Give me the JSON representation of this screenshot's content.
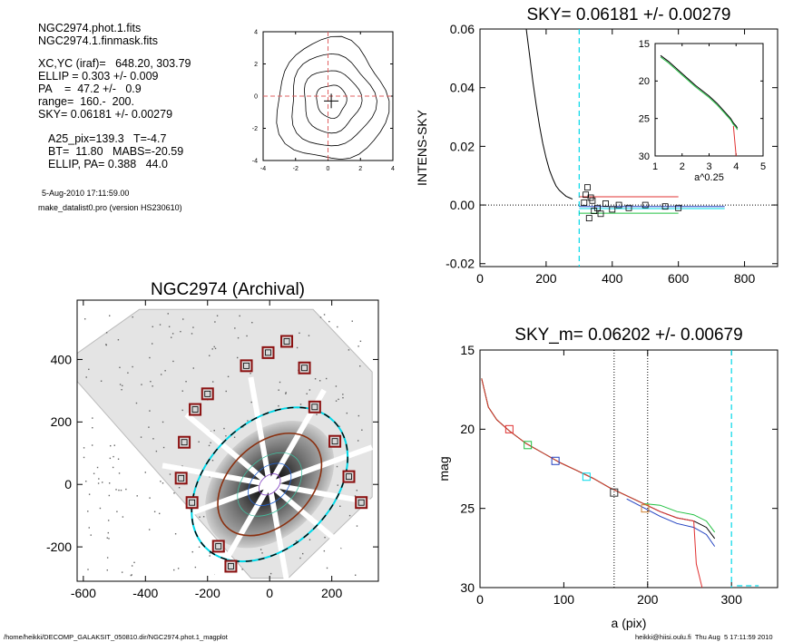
{
  "info": {
    "lines": [
      "NGC2974.phot.1.fits",
      "NGC2974.1.finmask.fits",
      "XC,YC (iraf)=   648.20, 303.79",
      "ELLIP = 0.303 +/- 0.009",
      "PA    =  47.2 +/-   0.9",
      "range=  160.-  200.",
      "SKY= 0.06181 +/- 0.00279",
      "A25_pix=139.3   T=-4.7",
      "BT=  11.80   MABS=-20.59",
      "ELLIP, PA= 0.388   44.0"
    ],
    "date": "5-Aug-2010 17:11:59.00",
    "program": "make_datalist0.pro (version HS230610)"
  },
  "footer": {
    "left": "/home/heikki/DECOMP_GALAKSIT_050810.dir/NGC2974.phot.1_magplot",
    "right": "heikki@hiisi.oulu.fi  Thu Aug  5 17:11:59 2010"
  },
  "colors": {
    "cyan": "#00d8e8",
    "red": "#e03030",
    "green": "#20c040",
    "blue": "#2040c0",
    "dark_red_box": "#8b1010",
    "grid_dash": "#000000"
  },
  "chart_data": [
    {
      "id": "contour",
      "type": "line",
      "title": "",
      "xlim": [
        -4,
        4
      ],
      "ylim": [
        -4,
        4
      ],
      "xticks": [
        -4,
        -2,
        0,
        2,
        4
      ],
      "yticks": [
        -4,
        -2,
        0,
        2,
        4
      ],
      "contour_radii": [
        1.0,
        1.9,
        2.8,
        3.7
      ],
      "center": [
        0.2,
        -0.3
      ]
    },
    {
      "id": "sky",
      "type": "line",
      "title": "SKY= 0.06181 +/- 0.00279",
      "xlabel": "",
      "ylabel": "INTENS-SKY",
      "xlim": [
        0,
        900
      ],
      "ylim": [
        -0.021,
        0.06
      ],
      "xticks": [
        0,
        200,
        400,
        600,
        800
      ],
      "yticks": [
        -0.02,
        0.0,
        0.02,
        0.04,
        0.06
      ],
      "ytick_labels": [
        "-0.02",
        "0.00",
        "0.02",
        "0.04",
        "0.06"
      ],
      "vline_x": 300,
      "profile": {
        "x": [
          140,
          150,
          160,
          170,
          180,
          190,
          200,
          210,
          220,
          230,
          240,
          250,
          260,
          270,
          280
        ],
        "y": [
          0.06,
          0.051,
          0.042,
          0.034,
          0.027,
          0.021,
          0.016,
          0.012,
          0.009,
          0.0065,
          0.005,
          0.004,
          0.003,
          0.0025,
          0.002
        ]
      },
      "squares": {
        "x": [
          315,
          320,
          325,
          330,
          335,
          340,
          345,
          355,
          365,
          380,
          400,
          420,
          450,
          500,
          560,
          600
        ],
        "y": [
          0.0008,
          0.0035,
          0.006,
          -0.0045,
          0.0025,
          0.0015,
          -0.002,
          -0.001,
          -0.003,
          0.0005,
          -0.0015,
          0.0,
          -0.001,
          0.0,
          -0.0005,
          -0.001
        ]
      },
      "levels": [
        {
          "name": "",
          "color": "red",
          "x": [
            300,
            600
          ],
          "y": 0.0028
        },
        {
          "name": "",
          "color": "green",
          "x": [
            300,
            600
          ],
          "y": -0.0028
        },
        {
          "name": "",
          "color": "blue",
          "x": [
            300,
            740
          ],
          "y": -0.0005
        },
        {
          "name": "",
          "color": "cyan",
          "x": [
            300,
            740
          ],
          "y": -0.0012
        }
      ],
      "inset": {
        "xlabel": "a^0.25",
        "xlim": [
          1,
          5
        ],
        "ylim": [
          15,
          30
        ],
        "xticks": [
          1,
          2,
          3,
          4,
          5
        ],
        "yticks": [
          15,
          20,
          25,
          30
        ],
        "x": [
          1.2,
          1.5,
          2.0,
          2.5,
          3.0,
          3.3,
          3.6,
          3.8,
          3.9,
          4.0,
          4.05
        ],
        "y": [
          16.6,
          17.4,
          19.0,
          20.6,
          22.0,
          23.0,
          24.2,
          25.0,
          25.6,
          26.0,
          26.3
        ],
        "red_drop": {
          "x": [
            3.9,
            3.95,
            4.0
          ],
          "y": [
            26.0,
            28.0,
            30.0
          ]
        }
      }
    },
    {
      "id": "image",
      "type": "scatter",
      "title": "NGC2974 (Archival)",
      "xlim": [
        -620,
        350
      ],
      "ylim": [
        -310,
        590
      ],
      "xticks": [
        -600,
        -400,
        -200,
        0,
        200
      ],
      "yticks": [
        -200,
        0,
        200,
        400
      ],
      "ellipses": [
        {
          "color": "cyan",
          "a": 290,
          "b": 200,
          "pa": 44
        },
        {
          "color": "black",
          "a": 290,
          "b": 200,
          "pa": 44
        },
        {
          "color": "brown",
          "a": 195,
          "b": 130,
          "pa": 44
        }
      ],
      "sky_boxes": {
        "x": [
          55,
          -5,
          112,
          -75,
          145,
          -200,
          -240,
          210,
          -275,
          255,
          -285,
          -250,
          295,
          -165,
          -125
        ],
        "y": [
          458,
          422,
          373,
          380,
          248,
          290,
          240,
          138,
          135,
          25,
          20,
          -58,
          -58,
          -198,
          -262
        ]
      }
    },
    {
      "id": "mag",
      "type": "line",
      "title": "SKY_m=  0.06202 +/- 0.00679",
      "xlabel": "a (pix)",
      "ylabel": "mag",
      "xlim": [
        0,
        355
      ],
      "ylim": [
        15,
        30
      ],
      "xticks": [
        0,
        100,
        200,
        300
      ],
      "yticks": [
        15,
        20,
        25,
        30
      ],
      "dotted_x": [
        160,
        200
      ],
      "dashed_cyan_x": 300,
      "profile": {
        "x": [
          2,
          10,
          20,
          35,
          55,
          75,
          95,
          115,
          135,
          155,
          175,
          195,
          215,
          235,
          255,
          270,
          280
        ],
        "y": [
          16.8,
          18.6,
          19.4,
          20.1,
          20.9,
          21.5,
          22.1,
          22.6,
          23.1,
          23.7,
          24.2,
          24.7,
          25.2,
          25.6,
          25.8,
          26.2,
          26.9
        ]
      },
      "boxes": [
        {
          "x": 35,
          "y": 20.0,
          "color": "red"
        },
        {
          "x": 57,
          "y": 21.0,
          "color": "green"
        },
        {
          "x": 90,
          "y": 22.0,
          "color": "blue"
        },
        {
          "x": 127,
          "y": 23.0,
          "color": "cyan"
        },
        {
          "x": 160,
          "y": 24.0,
          "color": "dark"
        },
        {
          "x": 197,
          "y": 25.0,
          "color": "orange"
        }
      ]
    }
  ]
}
